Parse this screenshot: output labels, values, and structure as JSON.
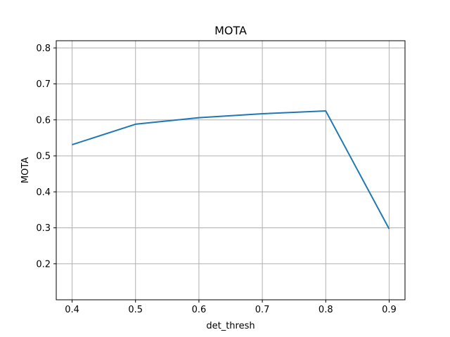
{
  "chart_data": {
    "type": "line",
    "title": "MOTA",
    "xlabel": "det_thresh",
    "ylabel": "MOTA",
    "x": [
      0.4,
      0.5,
      0.6,
      0.7,
      0.8,
      0.9
    ],
    "series": [
      {
        "values": [
          0.531,
          0.588,
          0.606,
          0.617,
          0.625,
          0.297
        ],
        "color": "#1f77b4"
      }
    ],
    "xlim": [
      0.375,
      0.925
    ],
    "ylim": [
      0.1,
      0.82
    ],
    "xticks": [
      0.4,
      0.5,
      0.6,
      0.7,
      0.8,
      0.9
    ],
    "xtick_labels": [
      "0.4",
      "0.5",
      "0.6",
      "0.7",
      "0.8",
      "0.9"
    ],
    "yticks": [
      0.2,
      0.3,
      0.4,
      0.5,
      0.6,
      0.7,
      0.8
    ],
    "ytick_labels": [
      "0.2",
      "0.3",
      "0.4",
      "0.5",
      "0.6",
      "0.7",
      "0.8"
    ],
    "grid": true,
    "grid_color": "#b0b0b0"
  }
}
